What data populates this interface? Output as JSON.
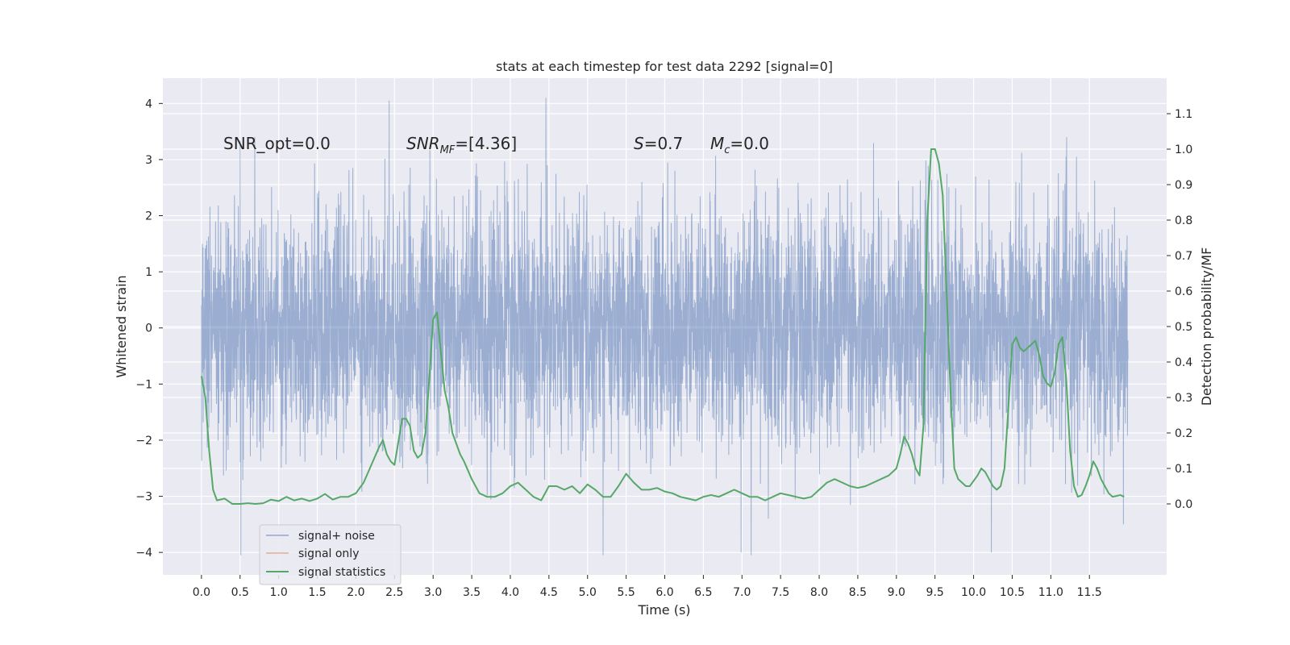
{
  "chart_data": {
    "type": "line",
    "title": "stats at each timestep for test data 2292 [signal=0]",
    "xlabel": "Time (s)",
    "ylabel_left": "Whitened strain",
    "ylabel_right": "Detection probability/MF",
    "xlim": [
      -0.5,
      12.5
    ],
    "ylim_left": [
      -4.4,
      4.45
    ],
    "ylim_right": [
      -0.2,
      1.2
    ],
    "x_ticks": [
      "0.0",
      "0.5",
      "1.0",
      "1.5",
      "2.0",
      "2.5",
      "3.0",
      "3.5",
      "4.0",
      "4.5",
      "5.0",
      "5.5",
      "6.0",
      "6.5",
      "7.0",
      "7.5",
      "8.0",
      "8.5",
      "9.0",
      "9.5",
      "10.0",
      "10.5",
      "11.0",
      "11.5"
    ],
    "y_ticks_left": [
      "−4",
      "−3",
      "−2",
      "−1",
      "0",
      "1",
      "2",
      "3",
      "4"
    ],
    "y_ticks_right": [
      "0.0",
      "0.1",
      "0.2",
      "0.3",
      "0.4",
      "0.5",
      "0.6",
      "0.7",
      "0.8",
      "0.9",
      "1.0",
      "1.1"
    ],
    "grid": true,
    "legend_position": "lower-left",
    "annotations": {
      "snr_opt": "SNR_opt=0.0",
      "snr_mf_main": "SNR",
      "snr_mf_sub": "MF",
      "snr_mf_value": "=[4.36]",
      "s_symbol": "S",
      "s_value": "=0.7",
      "mc_symbol": "M",
      "mc_sub": "c",
      "mc_value": "=0.0"
    },
    "series": [
      {
        "name": "signal+ noise",
        "color": "#4c72b0",
        "noise_sigma": 1.0,
        "x_range": [
          0.0,
          12.0
        ],
        "notable_peaks": [
          {
            "x": 2.43,
            "y": 4.05
          },
          {
            "x": 4.46,
            "y": 4.1
          },
          {
            "x": 0.51,
            "y": -4.05
          },
          {
            "x": 5.2,
            "y": -4.05
          },
          {
            "x": 6.99,
            "y": -4.0
          },
          {
            "x": 7.12,
            "y": -4.05
          },
          {
            "x": 10.23,
            "y": -4.0
          },
          {
            "x": 11.94,
            "y": -3.5
          }
        ]
      },
      {
        "name": "signal only",
        "color": "#dd8452",
        "values": []
      },
      {
        "name": "signal statistics",
        "color": "#55a868",
        "x": [
          0.0,
          0.05,
          0.1,
          0.15,
          0.2,
          0.3,
          0.4,
          0.5,
          0.6,
          0.7,
          0.8,
          0.9,
          1.0,
          1.1,
          1.2,
          1.3,
          1.4,
          1.5,
          1.6,
          1.7,
          1.8,
          1.9,
          2.0,
          2.1,
          2.2,
          2.3,
          2.35,
          2.4,
          2.45,
          2.5,
          2.6,
          2.65,
          2.7,
          2.75,
          2.8,
          2.85,
          2.9,
          2.95,
          3.0,
          3.05,
          3.1,
          3.15,
          3.2,
          3.25,
          3.3,
          3.35,
          3.4,
          3.5,
          3.6,
          3.7,
          3.8,
          3.9,
          4.0,
          4.1,
          4.2,
          4.3,
          4.4,
          4.5,
          4.6,
          4.7,
          4.8,
          4.9,
          5.0,
          5.1,
          5.2,
          5.3,
          5.4,
          5.5,
          5.6,
          5.7,
          5.8,
          5.9,
          6.0,
          6.1,
          6.2,
          6.3,
          6.4,
          6.5,
          6.6,
          6.7,
          6.8,
          6.9,
          7.0,
          7.1,
          7.2,
          7.3,
          7.4,
          7.5,
          7.6,
          7.7,
          7.8,
          7.9,
          8.0,
          8.1,
          8.2,
          8.3,
          8.4,
          8.5,
          8.6,
          8.7,
          8.8,
          8.9,
          9.0,
          9.05,
          9.1,
          9.15,
          9.2,
          9.25,
          9.3,
          9.35,
          9.4,
          9.45,
          9.5,
          9.55,
          9.6,
          9.65,
          9.7,
          9.75,
          9.8,
          9.85,
          9.9,
          9.95,
          10.0,
          10.05,
          10.1,
          10.15,
          10.2,
          10.25,
          10.3,
          10.35,
          10.4,
          10.45,
          10.5,
          10.55,
          10.6,
          10.65,
          10.7,
          10.75,
          10.8,
          10.85,
          10.9,
          10.95,
          11.0,
          11.05,
          11.1,
          11.15,
          11.2,
          11.25,
          11.3,
          11.35,
          11.4,
          11.45,
          11.5,
          11.55,
          11.6,
          11.65,
          11.7,
          11.75,
          11.8,
          11.9,
          11.95
        ],
        "values": [
          0.36,
          0.3,
          0.15,
          0.04,
          0.01,
          0.015,
          0.0,
          0.0,
          0.002,
          0.0,
          0.002,
          0.012,
          0.008,
          0.02,
          0.01,
          0.015,
          0.008,
          0.015,
          0.028,
          0.012,
          0.02,
          0.02,
          0.03,
          0.06,
          0.11,
          0.16,
          0.18,
          0.14,
          0.12,
          0.11,
          0.24,
          0.24,
          0.22,
          0.15,
          0.13,
          0.14,
          0.2,
          0.35,
          0.52,
          0.54,
          0.43,
          0.32,
          0.27,
          0.2,
          0.17,
          0.14,
          0.12,
          0.07,
          0.03,
          0.02,
          0.02,
          0.03,
          0.05,
          0.06,
          0.04,
          0.02,
          0.01,
          0.05,
          0.05,
          0.04,
          0.05,
          0.03,
          0.055,
          0.04,
          0.02,
          0.02,
          0.05,
          0.085,
          0.06,
          0.04,
          0.04,
          0.045,
          0.035,
          0.03,
          0.02,
          0.015,
          0.01,
          0.02,
          0.025,
          0.02,
          0.03,
          0.04,
          0.03,
          0.02,
          0.02,
          0.01,
          0.02,
          0.03,
          0.025,
          0.02,
          0.015,
          0.02,
          0.04,
          0.06,
          0.07,
          0.06,
          0.05,
          0.045,
          0.05,
          0.06,
          0.07,
          0.08,
          0.1,
          0.14,
          0.19,
          0.17,
          0.14,
          0.1,
          0.08,
          0.22,
          0.8,
          1.0,
          1.0,
          0.96,
          0.87,
          0.6,
          0.32,
          0.1,
          0.07,
          0.06,
          0.05,
          0.05,
          0.065,
          0.08,
          0.1,
          0.09,
          0.07,
          0.05,
          0.04,
          0.05,
          0.1,
          0.27,
          0.45,
          0.47,
          0.44,
          0.43,
          0.44,
          0.45,
          0.46,
          0.42,
          0.36,
          0.34,
          0.33,
          0.37,
          0.45,
          0.47,
          0.35,
          0.15,
          0.05,
          0.02,
          0.025,
          0.05,
          0.08,
          0.12,
          0.1,
          0.07,
          0.05,
          0.03,
          0.02,
          0.025,
          0.02
        ]
      }
    ]
  }
}
